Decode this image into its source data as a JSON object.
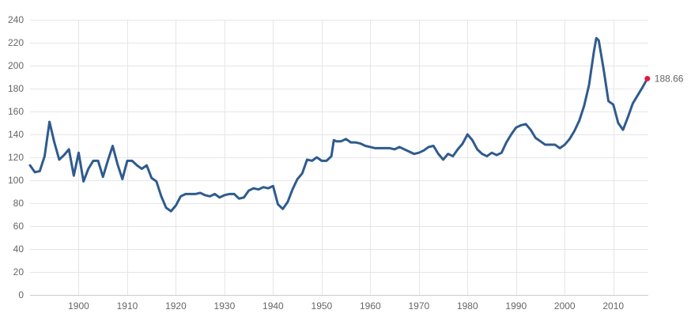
{
  "chart_data": {
    "type": "line",
    "title": "",
    "xlabel": "",
    "ylabel": "",
    "xlim": [
      1890,
      2017.2
    ],
    "ylim": [
      0,
      240
    ],
    "grid": true,
    "x_ticks": [
      1900,
      1910,
      1920,
      1930,
      1940,
      1950,
      1960,
      1970,
      1980,
      1990,
      2000,
      2010
    ],
    "y_ticks": [
      0,
      20,
      40,
      60,
      80,
      100,
      120,
      140,
      160,
      180,
      200,
      220,
      240
    ],
    "last_value_label": "188.66",
    "series": [
      {
        "color": "#2f5b8e",
        "points": [
          [
            1890,
            113
          ],
          [
            1891,
            107
          ],
          [
            1892,
            108
          ],
          [
            1893,
            121
          ],
          [
            1894,
            151
          ],
          [
            1895,
            133
          ],
          [
            1896,
            118
          ],
          [
            1897,
            122
          ],
          [
            1898,
            127
          ],
          [
            1899,
            104
          ],
          [
            1900,
            124
          ],
          [
            1901,
            99
          ],
          [
            1902,
            110
          ],
          [
            1903,
            117
          ],
          [
            1904,
            117
          ],
          [
            1905,
            103
          ],
          [
            1906,
            117
          ],
          [
            1907,
            130
          ],
          [
            1908,
            114
          ],
          [
            1909,
            101
          ],
          [
            1910,
            117
          ],
          [
            1911,
            117
          ],
          [
            1912,
            113
          ],
          [
            1913,
            110
          ],
          [
            1914,
            113
          ],
          [
            1915,
            102
          ],
          [
            1916,
            99
          ],
          [
            1917,
            86
          ],
          [
            1918,
            76
          ],
          [
            1919,
            73
          ],
          [
            1920,
            78
          ],
          [
            1921,
            86
          ],
          [
            1922,
            88
          ],
          [
            1923,
            88
          ],
          [
            1924,
            88
          ],
          [
            1925,
            89
          ],
          [
            1926,
            87
          ],
          [
            1927,
            86
          ],
          [
            1928,
            88
          ],
          [
            1929,
            85
          ],
          [
            1930,
            87
          ],
          [
            1931,
            88
          ],
          [
            1932,
            88
          ],
          [
            1933,
            84
          ],
          [
            1934,
            85
          ],
          [
            1935,
            91
          ],
          [
            1936,
            93
          ],
          [
            1937,
            92
          ],
          [
            1938,
            94
          ],
          [
            1939,
            93
          ],
          [
            1940,
            95
          ],
          [
            1941,
            79
          ],
          [
            1942,
            75
          ],
          [
            1943,
            81
          ],
          [
            1944,
            92
          ],
          [
            1945,
            101
          ],
          [
            1946,
            106
          ],
          [
            1947,
            118
          ],
          [
            1948,
            117
          ],
          [
            1949,
            120
          ],
          [
            1950,
            117
          ],
          [
            1951,
            117
          ],
          [
            1952,
            121
          ],
          [
            1952.5,
            135
          ],
          [
            1953,
            134
          ],
          [
            1954,
            134
          ],
          [
            1955,
            136
          ],
          [
            1956,
            133
          ],
          [
            1957,
            133
          ],
          [
            1958,
            132
          ],
          [
            1959,
            130
          ],
          [
            1960,
            129
          ],
          [
            1961,
            128
          ],
          [
            1962,
            128
          ],
          [
            1963,
            128
          ],
          [
            1964,
            128
          ],
          [
            1965,
            127
          ],
          [
            1966,
            129
          ],
          [
            1967,
            127
          ],
          [
            1968,
            125
          ],
          [
            1969,
            123
          ],
          [
            1970,
            124
          ],
          [
            1971,
            126
          ],
          [
            1972,
            129
          ],
          [
            1973,
            130
          ],
          [
            1974,
            123
          ],
          [
            1975,
            118
          ],
          [
            1976,
            123
          ],
          [
            1977,
            121
          ],
          [
            1978,
            127
          ],
          [
            1979,
            132
          ],
          [
            1980,
            140
          ],
          [
            1981,
            135
          ],
          [
            1982,
            127
          ],
          [
            1983,
            123
          ],
          [
            1984,
            121
          ],
          [
            1985,
            124
          ],
          [
            1986,
            122
          ],
          [
            1987,
            124
          ],
          [
            1988,
            133
          ],
          [
            1989,
            140
          ],
          [
            1990,
            146
          ],
          [
            1991,
            148
          ],
          [
            1992,
            149
          ],
          [
            1993,
            144
          ],
          [
            1994,
            137
          ],
          [
            1995,
            134
          ],
          [
            1996,
            131
          ],
          [
            1997,
            131
          ],
          [
            1998,
            131
          ],
          [
            1999,
            128
          ],
          [
            2000,
            131
          ],
          [
            2001,
            136
          ],
          [
            2002,
            143
          ],
          [
            2003,
            152
          ],
          [
            2004,
            165
          ],
          [
            2005,
            183
          ],
          [
            2006,
            212
          ],
          [
            2006.5,
            224
          ],
          [
            2007,
            222
          ],
          [
            2008,
            197
          ],
          [
            2009,
            169
          ],
          [
            2010,
            166
          ],
          [
            2011,
            150
          ],
          [
            2012,
            144
          ],
          [
            2013,
            155
          ],
          [
            2014,
            167
          ],
          [
            2015,
            174
          ],
          [
            2016,
            181
          ],
          [
            2017,
            188.66
          ]
        ]
      }
    ]
  }
}
